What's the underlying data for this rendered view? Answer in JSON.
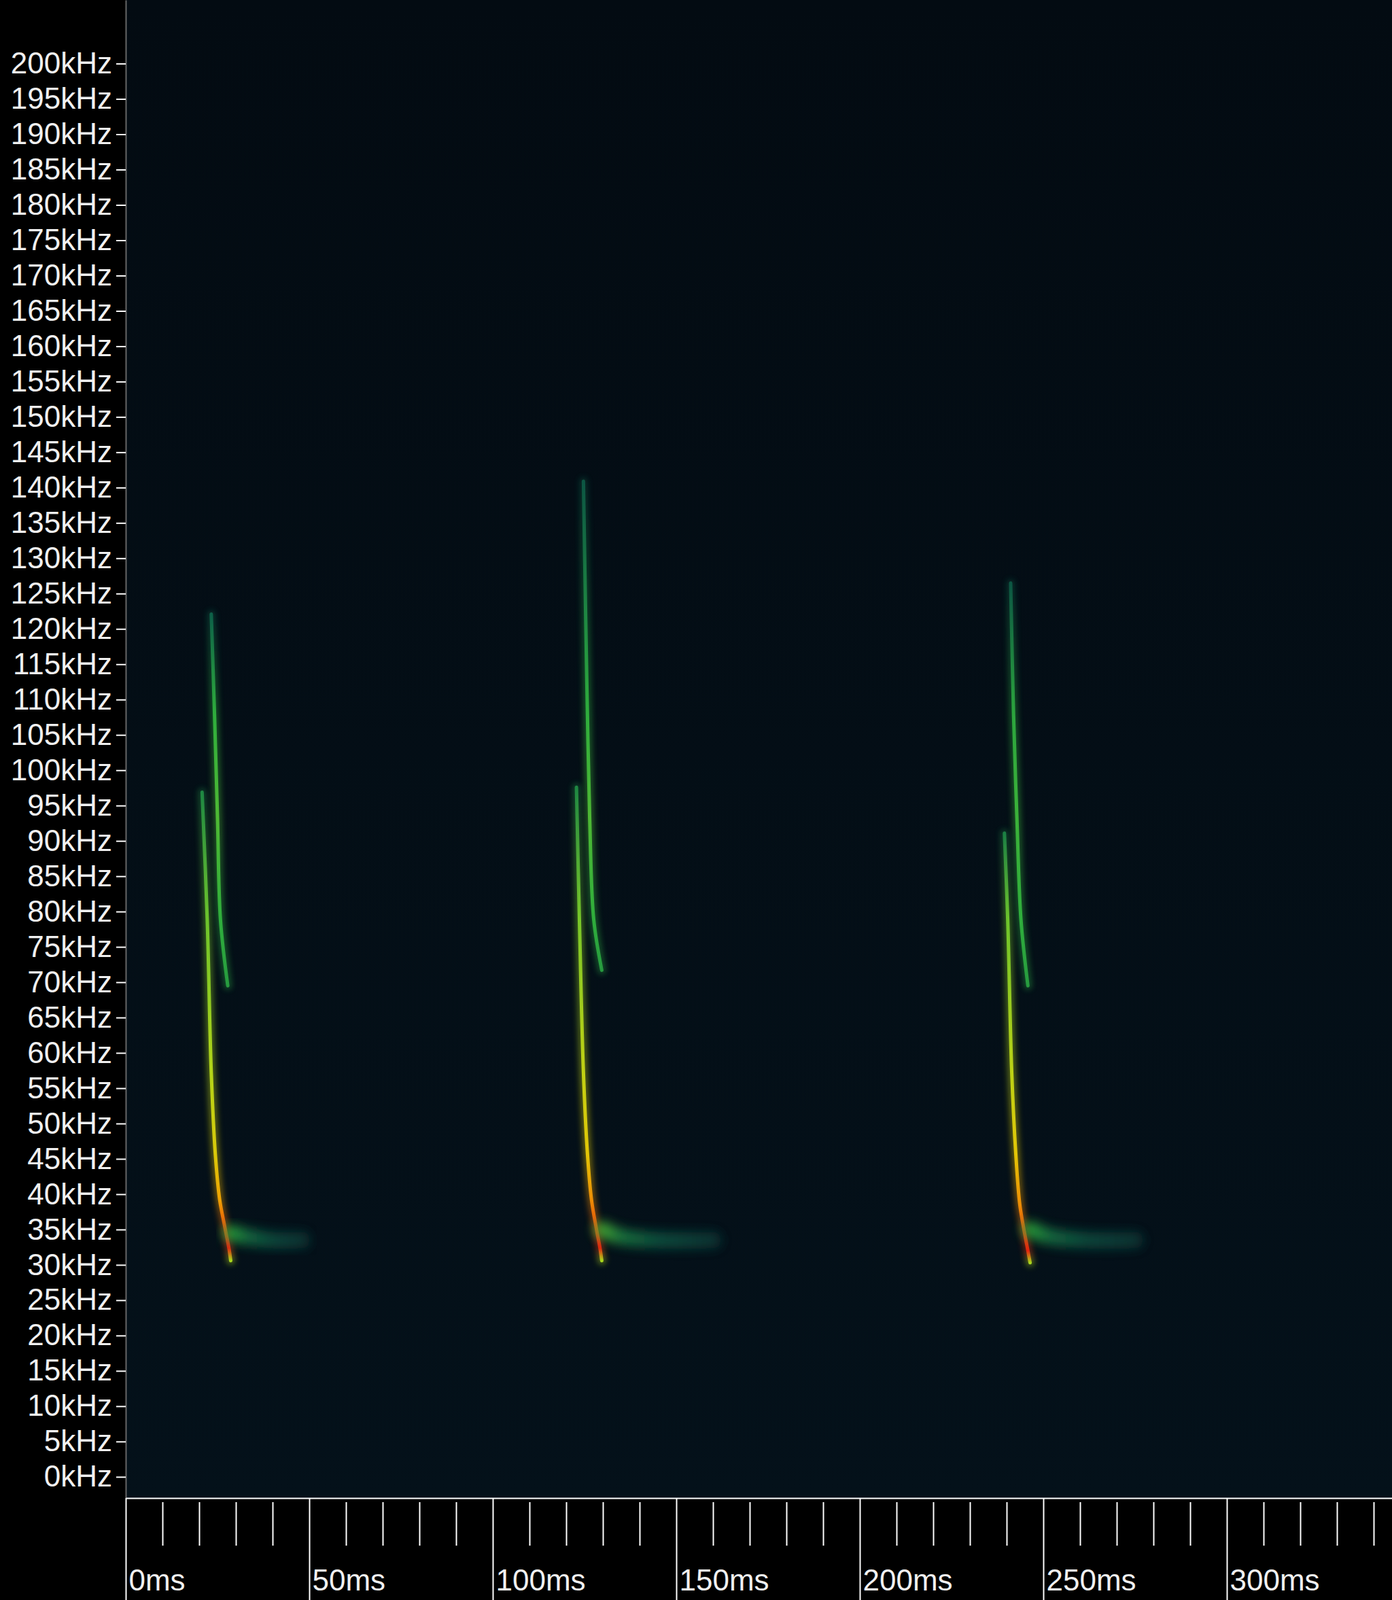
{
  "chart_data": {
    "type": "spectrogram",
    "xlim": [
      0,
      345
    ],
    "ylim": [
      -3,
      209
    ],
    "xticks": [
      {
        "value": 0,
        "label": "0ms"
      },
      {
        "value": 50,
        "label": "50ms"
      },
      {
        "value": 100,
        "label": "100ms"
      },
      {
        "value": 150,
        "label": "150ms"
      },
      {
        "value": 200,
        "label": "200ms"
      },
      {
        "value": 250,
        "label": "250ms"
      },
      {
        "value": 300,
        "label": "300ms"
      }
    ],
    "xticks_minor": [
      10,
      20,
      30,
      40,
      60,
      70,
      80,
      90,
      110,
      120,
      130,
      140,
      160,
      170,
      180,
      190,
      210,
      220,
      230,
      240,
      260,
      270,
      280,
      290,
      310,
      320,
      330,
      340
    ],
    "yticks": [
      {
        "value": 0,
        "label": "0kHz"
      },
      {
        "value": 5,
        "label": "5kHz"
      },
      {
        "value": 10,
        "label": "10kHz"
      },
      {
        "value": 15,
        "label": "15kHz"
      },
      {
        "value": 20,
        "label": "20kHz"
      },
      {
        "value": 25,
        "label": "25kHz"
      },
      {
        "value": 30,
        "label": "30kHz"
      },
      {
        "value": 35,
        "label": "35kHz"
      },
      {
        "value": 40,
        "label": "40kHz"
      },
      {
        "value": 45,
        "label": "45kHz"
      },
      {
        "value": 50,
        "label": "50kHz"
      },
      {
        "value": 55,
        "label": "55kHz"
      },
      {
        "value": 60,
        "label": "60kHz"
      },
      {
        "value": 65,
        "label": "65kHz"
      },
      {
        "value": 70,
        "label": "70kHz"
      },
      {
        "value": 75,
        "label": "75kHz"
      },
      {
        "value": 80,
        "label": "80kHz"
      },
      {
        "value": 85,
        "label": "85kHz"
      },
      {
        "value": 90,
        "label": "90kHz"
      },
      {
        "value": 95,
        "label": "95kHz"
      },
      {
        "value": 100,
        "label": "100kHz"
      },
      {
        "value": 105,
        "label": "105kHz"
      },
      {
        "value": 110,
        "label": "110kHz"
      },
      {
        "value": 115,
        "label": "115kHz"
      },
      {
        "value": 120,
        "label": "120kHz"
      },
      {
        "value": 125,
        "label": "125kHz"
      },
      {
        "value": 130,
        "label": "130kHz"
      },
      {
        "value": 135,
        "label": "135kHz"
      },
      {
        "value": 140,
        "label": "140kHz"
      },
      {
        "value": 145,
        "label": "145kHz"
      },
      {
        "value": 150,
        "label": "150kHz"
      },
      {
        "value": 155,
        "label": "155kHz"
      },
      {
        "value": 160,
        "label": "160kHz"
      },
      {
        "value": 165,
        "label": "165kHz"
      },
      {
        "value": 170,
        "label": "170kHz"
      },
      {
        "value": 175,
        "label": "175kHz"
      },
      {
        "value": 180,
        "label": "180kHz"
      },
      {
        "value": 185,
        "label": "185kHz"
      },
      {
        "value": 190,
        "label": "190kHz"
      },
      {
        "value": 195,
        "label": "195kHz"
      },
      {
        "value": 200,
        "label": "200kHz"
      }
    ],
    "series": [
      {
        "x": [
          20.8,
          22.2,
          23.3,
          24.4,
          25.6,
          26.9,
          28.1,
          28.6
        ],
        "values": [
          96.9,
          78.9,
          57.2,
          45.7,
          39.2,
          35.6,
          32.4,
          30.6
        ],
        "intensity": [
          0.4,
          0.6,
          0.72,
          0.8,
          0.88,
          0.95,
          1,
          0.7
        ]
      },
      {
        "x": [
          23.3,
          24.2,
          25.0,
          25.8,
          27.8
        ],
        "values": [
          122.1,
          107.7,
          93.3,
          78.9,
          69.5
        ],
        "intensity": [
          0.3,
          0.5,
          0.55,
          0.5,
          0.45
        ]
      },
      {
        "x": [
          28.6,
          33,
          40,
          48
        ],
        "values": [
          34.5,
          34,
          33.5,
          33.5
        ],
        "intensity": [
          0.5,
          0.35,
          0.22,
          0.12
        ],
        "line_style": "diffuse"
      },
      {
        "x": [
          122.8,
          123.6,
          124.7,
          125.8,
          126.9,
          128.3,
          129.2,
          129.7
        ],
        "values": [
          97.6,
          78.9,
          57.2,
          45.7,
          39.2,
          34.9,
          32.4,
          30.6
        ],
        "intensity": [
          0.4,
          0.62,
          0.75,
          0.82,
          0.9,
          0.97,
          1,
          0.7
        ]
      },
      {
        "x": [
          124.7,
          125.3,
          125.8,
          126.4,
          127.5,
          129.7
        ],
        "values": [
          140.9,
          122.1,
          107.7,
          93.3,
          78.9,
          71.7
        ],
        "intensity": [
          0.25,
          0.4,
          0.5,
          0.55,
          0.5,
          0.45
        ]
      },
      {
        "x": [
          129.7,
          135,
          145,
          160
        ],
        "values": [
          35,
          34,
          33.5,
          33.5
        ],
        "intensity": [
          0.55,
          0.38,
          0.25,
          0.12
        ],
        "line_style": "diffuse"
      },
      {
        "x": [
          239.4,
          240.3,
          241.4,
          242.5,
          243.6,
          245.0,
          245.8,
          246.4
        ],
        "values": [
          91.1,
          78.9,
          57.2,
          45.7,
          38.5,
          34.2,
          32.0,
          30.3
        ],
        "intensity": [
          0.38,
          0.6,
          0.74,
          0.82,
          0.9,
          0.97,
          1,
          0.7
        ]
      },
      {
        "x": [
          241.1,
          241.9,
          242.8,
          243.9,
          245.8
        ],
        "values": [
          126.5,
          107.7,
          93.3,
          78.9,
          69.5
        ],
        "intensity": [
          0.25,
          0.48,
          0.52,
          0.5,
          0.45
        ]
      },
      {
        "x": [
          246.4,
          252,
          262,
          275
        ],
        "values": [
          35,
          34,
          33.5,
          33.5
        ],
        "intensity": [
          0.5,
          0.35,
          0.22,
          0.12
        ],
        "line_style": "diffuse"
      }
    ]
  }
}
